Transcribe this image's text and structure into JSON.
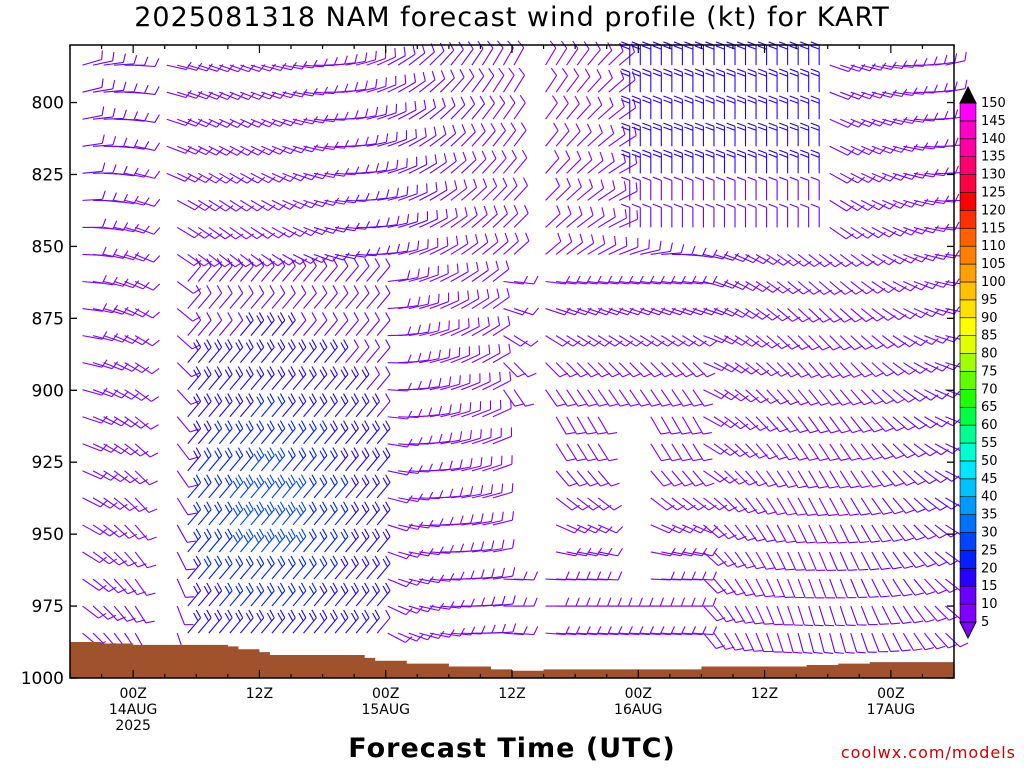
{
  "header": {
    "title": "2025081318 NAM forecast wind profile (kt) for KART"
  },
  "footer": {
    "xlabel": "Forecast Time (UTC)",
    "credit": "coolwx.com/models"
  },
  "chart_data": {
    "type": "heatmap",
    "title": "2025081318 NAM forecast wind profile (kt) for KART",
    "xlabel": "Forecast Time (UTC)",
    "ylabel": "",
    "y_axis": {
      "ticks": [
        800,
        825,
        850,
        875,
        900,
        925,
        950,
        975,
        1000
      ],
      "range": [
        780,
        1000
      ],
      "inverted": true
    },
    "x_axis": {
      "range_hours": [
        0,
        84
      ],
      "ticks": [
        {
          "hour": 6,
          "lines": [
            "00Z",
            "14AUG",
            "2025"
          ]
        },
        {
          "hour": 18,
          "lines": [
            "12Z"
          ]
        },
        {
          "hour": 30,
          "lines": [
            "00Z",
            "15AUG"
          ]
        },
        {
          "hour": 42,
          "lines": [
            "12Z"
          ]
        },
        {
          "hour": 54,
          "lines": [
            "00Z",
            "16AUG"
          ]
        },
        {
          "hour": 66,
          "lines": [
            "12Z"
          ]
        },
        {
          "hour": 78,
          "lines": [
            "00Z",
            "17AUG"
          ]
        }
      ]
    },
    "colorbar": {
      "levels": [
        "5",
        "10",
        "15",
        "20",
        "25",
        "30",
        "35",
        "40",
        "45",
        "50",
        "55",
        "60",
        "65",
        "70",
        "75",
        "80",
        "85",
        "90",
        "95",
        "100",
        "105",
        "110",
        "115",
        "120",
        "125",
        "130",
        "135",
        "140",
        "145",
        "150"
      ],
      "colors": [
        "#8000ff",
        "#6b00ff",
        "#2800ff",
        "#0020ff",
        "#0044ff",
        "#0070ff",
        "#009aff",
        "#00c4ff",
        "#00e6ff",
        "#00ffd0",
        "#00ff90",
        "#00ff40",
        "#20ff00",
        "#60ff00",
        "#a0ff00",
        "#e0ff00",
        "#ffff00",
        "#ffe000",
        "#ffc000",
        "#ffa000",
        "#ff8000",
        "#ff6000",
        "#ff3000",
        "#ff0000",
        "#ff0040",
        "#ff0070",
        "#ff00a0",
        "#ff00c8",
        "#ff00ff"
      ],
      "under_color": "#8000ff",
      "over_color": "#000000"
    },
    "terrain_surface_hpa": [
      {
        "h": 0,
        "p": 987.5
      },
      {
        "h": 3,
        "p": 988
      },
      {
        "h": 6,
        "p": 988.5
      },
      {
        "h": 15,
        "p": 989
      },
      {
        "h": 16,
        "p": 990
      },
      {
        "h": 18,
        "p": 991
      },
      {
        "h": 19,
        "p": 992
      },
      {
        "h": 28,
        "p": 993
      },
      {
        "h": 29,
        "p": 994
      },
      {
        "h": 32,
        "p": 995
      },
      {
        "h": 36,
        "p": 996
      },
      {
        "h": 40,
        "p": 997
      },
      {
        "h": 42,
        "p": 997.5
      },
      {
        "h": 45,
        "p": 997
      },
      {
        "h": 60,
        "p": 996
      },
      {
        "h": 66,
        "p": 996
      },
      {
        "h": 70,
        "p": 995.5
      },
      {
        "h": 73,
        "p": 995
      },
      {
        "h": 76,
        "p": 994.5
      },
      {
        "h": 84,
        "p": 994
      }
    ]
  }
}
